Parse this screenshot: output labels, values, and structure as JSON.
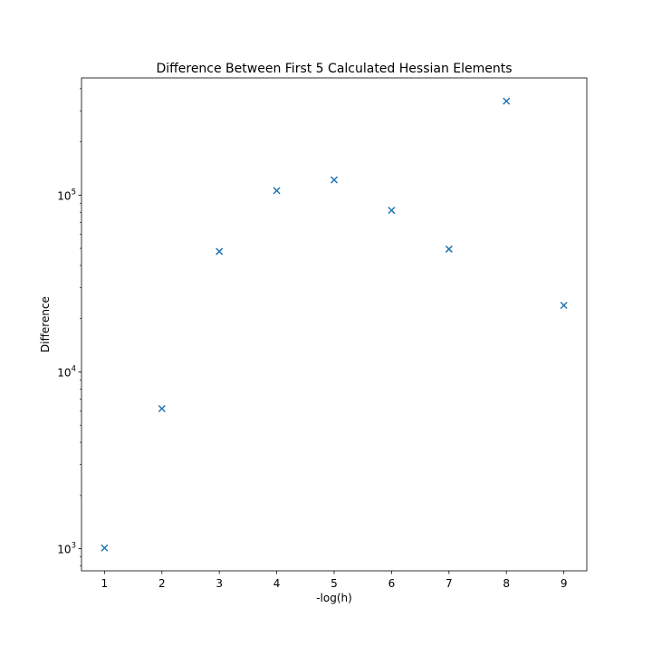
{
  "chart_data": {
    "type": "scatter",
    "title": "Difference Between First 5 Calculated Hessian Elements",
    "xlabel": "-log(h)",
    "ylabel": "Difference",
    "yscale": "log",
    "x": [
      1,
      2,
      3,
      4,
      5,
      6,
      7,
      8,
      9
    ],
    "series": [
      {
        "values": [
          1010,
          6200,
          48000,
          106000,
          122000,
          82000,
          49500,
          340000,
          23800
        ],
        "marker": "x",
        "color": "#1f77b4"
      }
    ],
    "xlim": [
      0.6,
      9.4
    ],
    "ylim": [
      750,
      460000
    ],
    "x_ticks": [
      1,
      2,
      3,
      4,
      5,
      6,
      7,
      8,
      9
    ],
    "x_tick_labels": [
      "1",
      "2",
      "3",
      "4",
      "5",
      "6",
      "7",
      "8",
      "9"
    ],
    "y_major_ticks": [
      1000,
      10000,
      100000
    ],
    "y_tick_labels": [
      {
        "base": "10",
        "exp": "3"
      },
      {
        "base": "10",
        "exp": "4"
      },
      {
        "base": "10",
        "exp": "5"
      }
    ],
    "grid": false,
    "legend": "none"
  }
}
